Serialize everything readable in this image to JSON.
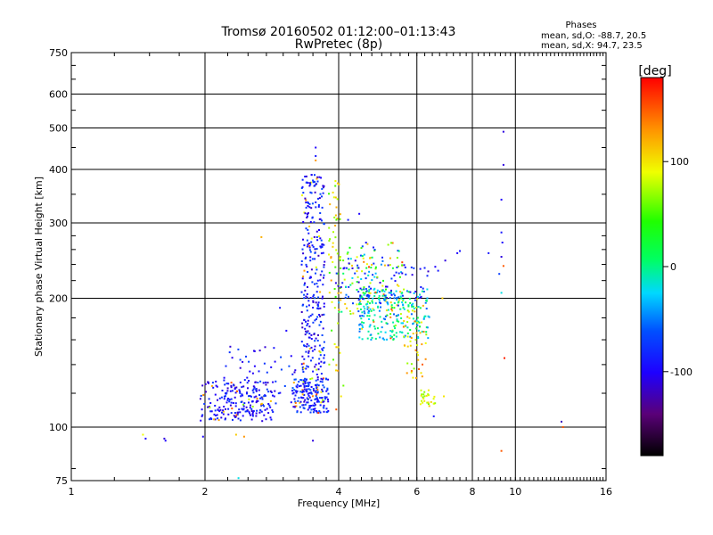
{
  "chart_data": {
    "type": "scatter",
    "title": "Tromsø 20160502 01:12:00–01:13:43",
    "subtitle": "RwPretec (8p)",
    "xlabel": "Frequency [MHz]",
    "ylabel": "Stationary phase Virtual Height [km]",
    "x_scale": "log",
    "y_scale": "log",
    "xlim": [
      1,
      16
    ],
    "ylim": [
      75,
      750
    ],
    "x_ticks": [
      1,
      2,
      4,
      6,
      8,
      10,
      16
    ],
    "x_tick_labels": [
      "1",
      "2",
      "4",
      "6",
      "8",
      "10",
      "16"
    ],
    "y_ticks": [
      75,
      100,
      200,
      300,
      400,
      500,
      600,
      750
    ],
    "y_tick_labels": [
      "75",
      "100",
      "200",
      "300",
      "400",
      "500",
      "600",
      "750"
    ],
    "grid": true,
    "phase_box": {
      "title": "Phases",
      "line_o": "mean, sd,O: -88.7, 20.5",
      "line_x": "mean, sd,X:  94.7, 23.5"
    },
    "colorbar": {
      "label": "[deg]",
      "range": [
        -180,
        180
      ],
      "ticks": [
        100,
        0,
        -100
      ],
      "tick_labels": [
        "100",
        "0",
        "-100"
      ]
    },
    "clusters": [
      {
        "x": [
          1.95,
          2.85
        ],
        "y": [
          103,
          128
        ],
        "phase": [
          -120,
          -70
        ],
        "count": 190
      },
      {
        "x": [
          2.2,
          3.45
        ],
        "y": [
          108,
          155
        ],
        "phase": [
          -115,
          -65
        ],
        "count": 90
      },
      {
        "x": [
          3.3,
          3.72
        ],
        "y": [
          112,
          390
        ],
        "phase": [
          -120,
          -60
        ],
        "count": 320
      },
      {
        "x": [
          3.15,
          3.8
        ],
        "y": [
          108,
          130
        ],
        "phase": [
          -110,
          -55
        ],
        "count": 140
      },
      {
        "x": [
          3.8,
          4.05
        ],
        "y": [
          135,
          380
        ],
        "phase": [
          40,
          130
        ],
        "count": 60
      },
      {
        "x": [
          4.0,
          5.6
        ],
        "y": [
          180,
          270
        ],
        "phase": [
          -100,
          120
        ],
        "count": 150
      },
      {
        "x": [
          4.4,
          6.4
        ],
        "y": [
          160,
          210
        ],
        "phase": [
          -60,
          20
        ],
        "count": 230
      },
      {
        "x": [
          5.6,
          6.3
        ],
        "y": [
          130,
          185
        ],
        "phase": [
          60,
          150
        ],
        "count": 40
      },
      {
        "x": [
          6.1,
          6.6
        ],
        "y": [
          113,
          122
        ],
        "phase": [
          60,
          100
        ],
        "count": 25
      },
      {
        "x": [
          3.9,
          6.4
        ],
        "y": [
          195,
          245
        ],
        "phase": [
          -120,
          -70
        ],
        "count": 60
      }
    ],
    "points": [
      {
        "x": 1.45,
        "y": 96,
        "phase": 90
      },
      {
        "x": 1.47,
        "y": 94,
        "phase": -100
      },
      {
        "x": 1.62,
        "y": 94,
        "phase": -110
      },
      {
        "x": 1.63,
        "y": 93,
        "phase": -100
      },
      {
        "x": 1.98,
        "y": 95,
        "phase": -100
      },
      {
        "x": 2.35,
        "y": 96,
        "phase": 110
      },
      {
        "x": 2.45,
        "y": 95,
        "phase": 130
      },
      {
        "x": 2.38,
        "y": 76,
        "phase": -20
      },
      {
        "x": 2.68,
        "y": 278,
        "phase": 120
      },
      {
        "x": 2.95,
        "y": 190,
        "phase": -90
      },
      {
        "x": 3.05,
        "y": 168,
        "phase": -100
      },
      {
        "x": 3.55,
        "y": 450,
        "phase": -100
      },
      {
        "x": 3.55,
        "y": 430,
        "phase": -90
      },
      {
        "x": 3.5,
        "y": 93,
        "phase": -110
      },
      {
        "x": 3.55,
        "y": 420,
        "phase": 130
      },
      {
        "x": 4.45,
        "y": 315,
        "phase": -100
      },
      {
        "x": 4.2,
        "y": 305,
        "phase": -90
      },
      {
        "x": 7.4,
        "y": 255,
        "phase": -100
      },
      {
        "x": 7.5,
        "y": 258,
        "phase": -90
      },
      {
        "x": 8.7,
        "y": 255,
        "phase": -90
      },
      {
        "x": 9.4,
        "y": 490,
        "phase": -110
      },
      {
        "x": 9.4,
        "y": 410,
        "phase": -110
      },
      {
        "x": 9.3,
        "y": 340,
        "phase": -100
      },
      {
        "x": 9.3,
        "y": 285,
        "phase": -90
      },
      {
        "x": 9.35,
        "y": 270,
        "phase": -100
      },
      {
        "x": 9.3,
        "y": 250,
        "phase": -110
      },
      {
        "x": 9.4,
        "y": 238,
        "phase": 150
      },
      {
        "x": 9.2,
        "y": 228,
        "phase": -70
      },
      {
        "x": 9.3,
        "y": 206,
        "phase": -20
      },
      {
        "x": 9.45,
        "y": 145,
        "phase": 170
      },
      {
        "x": 9.3,
        "y": 88,
        "phase": 150
      },
      {
        "x": 12.7,
        "y": 103,
        "phase": -120
      },
      {
        "x": 12.8,
        "y": 100,
        "phase": 150
      },
      {
        "x": 6.55,
        "y": 106,
        "phase": -90
      },
      {
        "x": 6.4,
        "y": 112,
        "phase": 110
      },
      {
        "x": 6.85,
        "y": 200,
        "phase": 110
      },
      {
        "x": 6.9,
        "y": 118,
        "phase": 100
      },
      {
        "x": 6.6,
        "y": 237,
        "phase": -100
      },
      {
        "x": 6.7,
        "y": 232,
        "phase": -90
      },
      {
        "x": 6.95,
        "y": 245,
        "phase": -110
      },
      {
        "x": 4.1,
        "y": 125,
        "phase": 60
      },
      {
        "x": 4.05,
        "y": 118,
        "phase": 100
      },
      {
        "x": 3.95,
        "y": 110,
        "phase": 150
      },
      {
        "x": 3.6,
        "y": 108,
        "phase": 160
      }
    ]
  }
}
